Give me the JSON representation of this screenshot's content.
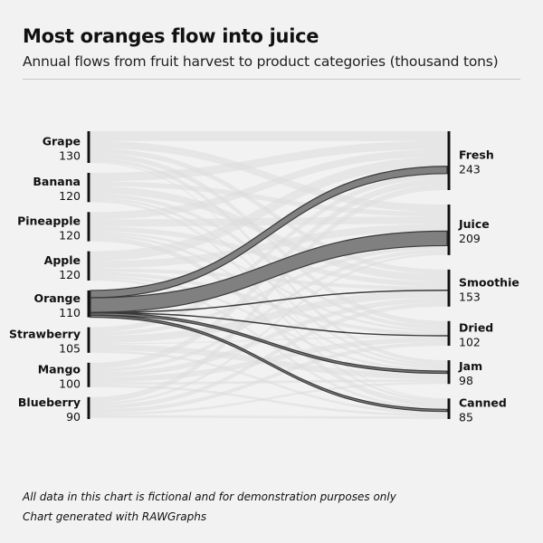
{
  "title": "Most oranges flow into juice",
  "subtitle": "Annual flows from fruit harvest to product categories (thousand tons)",
  "footer": {
    "line1": "All data in this chart is fictional and for demonstration purposes only",
    "line2": "Chart generated with RAWGraphs"
  },
  "colors": {
    "background": "#f2f2f2",
    "highlight": "#808080",
    "highlight_stroke": "#3a3a3a",
    "context": "#dcdcdc",
    "node": "#111111"
  },
  "chart_data": {
    "type": "sankey",
    "highlight_source": "Orange",
    "sources": [
      {
        "name": "Grape",
        "value": 130
      },
      {
        "name": "Banana",
        "value": 120
      },
      {
        "name": "Pineapple",
        "value": 120
      },
      {
        "name": "Apple",
        "value": 120
      },
      {
        "name": "Orange",
        "value": 110
      },
      {
        "name": "Strawberry",
        "value": 105
      },
      {
        "name": "Mango",
        "value": 100
      },
      {
        "name": "Blueberry",
        "value": 90
      }
    ],
    "targets": [
      {
        "name": "Fresh",
        "value": 243
      },
      {
        "name": "Juice",
        "value": 209
      },
      {
        "name": "Smoothie",
        "value": 153
      },
      {
        "name": "Dried",
        "value": 102
      },
      {
        "name": "Jam",
        "value": 98
      },
      {
        "name": "Canned",
        "value": 85
      }
    ],
    "links": [
      {
        "source": "Grape",
        "target": "Fresh",
        "value": 40
      },
      {
        "source": "Grape",
        "target": "Juice",
        "value": 30
      },
      {
        "source": "Grape",
        "target": "Smoothie",
        "value": 20
      },
      {
        "source": "Grape",
        "target": "Dried",
        "value": 20
      },
      {
        "source": "Grape",
        "target": "Jam",
        "value": 15
      },
      {
        "source": "Grape",
        "target": "Canned",
        "value": 5
      },
      {
        "source": "Banana",
        "target": "Fresh",
        "value": 35
      },
      {
        "source": "Banana",
        "target": "Juice",
        "value": 20
      },
      {
        "source": "Banana",
        "target": "Smoothie",
        "value": 30
      },
      {
        "source": "Banana",
        "target": "Dried",
        "value": 15
      },
      {
        "source": "Banana",
        "target": "Jam",
        "value": 10
      },
      {
        "source": "Banana",
        "target": "Canned",
        "value": 10
      },
      {
        "source": "Pineapple",
        "target": "Fresh",
        "value": 30
      },
      {
        "source": "Pineapple",
        "target": "Juice",
        "value": 30
      },
      {
        "source": "Pineapple",
        "target": "Smoothie",
        "value": 20
      },
      {
        "source": "Pineapple",
        "target": "Dried",
        "value": 10
      },
      {
        "source": "Pineapple",
        "target": "Jam",
        "value": 10
      },
      {
        "source": "Pineapple",
        "target": "Canned",
        "value": 20
      },
      {
        "source": "Apple",
        "target": "Fresh",
        "value": 40
      },
      {
        "source": "Apple",
        "target": "Juice",
        "value": 30
      },
      {
        "source": "Apple",
        "target": "Smoothie",
        "value": 15
      },
      {
        "source": "Apple",
        "target": "Dried",
        "value": 15
      },
      {
        "source": "Apple",
        "target": "Jam",
        "value": 10
      },
      {
        "source": "Apple",
        "target": "Canned",
        "value": 10
      },
      {
        "source": "Orange",
        "target": "Fresh",
        "value": 30
      },
      {
        "source": "Orange",
        "target": "Juice",
        "value": 60
      },
      {
        "source": "Orange",
        "target": "Smoothie",
        "value": 1
      },
      {
        "source": "Orange",
        "target": "Dried",
        "value": 1
      },
      {
        "source": "Orange",
        "target": "Jam",
        "value": 9
      },
      {
        "source": "Orange",
        "target": "Canned",
        "value": 9
      },
      {
        "source": "Strawberry",
        "target": "Fresh",
        "value": 20
      },
      {
        "source": "Strawberry",
        "target": "Juice",
        "value": 15
      },
      {
        "source": "Strawberry",
        "target": "Smoothie",
        "value": 30
      },
      {
        "source": "Strawberry",
        "target": "Dried",
        "value": 5
      },
      {
        "source": "Strawberry",
        "target": "Jam",
        "value": 25
      },
      {
        "source": "Strawberry",
        "target": "Canned",
        "value": 10
      },
      {
        "source": "Mango",
        "target": "Fresh",
        "value": 25
      },
      {
        "source": "Mango",
        "target": "Juice",
        "value": 14
      },
      {
        "source": "Mango",
        "target": "Smoothie",
        "value": 20
      },
      {
        "source": "Mango",
        "target": "Dried",
        "value": 21
      },
      {
        "source": "Mango",
        "target": "Jam",
        "value": 10
      },
      {
        "source": "Mango",
        "target": "Canned",
        "value": 10
      },
      {
        "source": "Blueberry",
        "target": "Fresh",
        "value": 23
      },
      {
        "source": "Blueberry",
        "target": "Juice",
        "value": 10
      },
      {
        "source": "Blueberry",
        "target": "Smoothie",
        "value": 17
      },
      {
        "source": "Blueberry",
        "target": "Dried",
        "value": 15
      },
      {
        "source": "Blueberry",
        "target": "Jam",
        "value": 9
      },
      {
        "source": "Blueberry",
        "target": "Canned",
        "value": 11
      }
    ]
  }
}
